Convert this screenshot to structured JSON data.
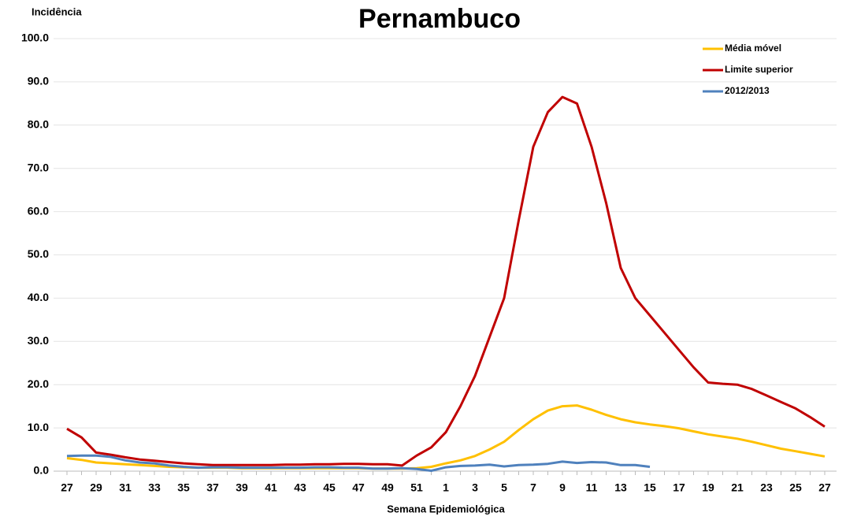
{
  "chart_data": {
    "type": "line",
    "title": "Pernambuco",
    "x_label": "Semana Epidemiológica",
    "y_label": "Incidência",
    "categories": [
      "27",
      null,
      "29",
      null,
      "31",
      null,
      "33",
      null,
      "35",
      null,
      "37",
      null,
      "39",
      null,
      "41",
      null,
      "43",
      null,
      "45",
      null,
      "47",
      null,
      "49",
      null,
      "51",
      null,
      "1",
      null,
      "3",
      null,
      "5",
      null,
      "7",
      null,
      "9",
      null,
      "11",
      null,
      "13",
      null,
      "15",
      null,
      "17",
      null,
      "19",
      null,
      "21",
      null,
      "23",
      null,
      "25",
      null,
      "27"
    ],
    "series": [
      {
        "name": "Média móvel",
        "color": "#ffc000",
        "values": [
          3.0,
          2.6,
          2.0,
          1.8,
          1.6,
          1.4,
          1.2,
          1.0,
          0.9,
          0.8,
          0.8,
          0.8,
          0.7,
          0.7,
          0.7,
          0.7,
          0.7,
          0.7,
          0.7,
          0.7,
          0.7,
          0.6,
          0.6,
          0.6,
          0.7,
          1.0,
          1.8,
          2.5,
          3.5,
          5.0,
          6.8,
          9.5,
          12.0,
          14.0,
          15.0,
          15.2,
          14.2,
          13.0,
          12.0,
          11.3,
          10.8,
          10.4,
          9.9,
          9.2,
          8.5,
          8.0,
          7.5,
          6.8,
          6.0,
          5.2,
          4.6,
          4.0,
          3.4
        ]
      },
      {
        "name": "Limite superior",
        "color": "#c00000",
        "values": [
          9.8,
          7.8,
          4.3,
          3.8,
          3.2,
          2.7,
          2.4,
          2.1,
          1.8,
          1.6,
          1.4,
          1.4,
          1.4,
          1.4,
          1.4,
          1.5,
          1.5,
          1.6,
          1.6,
          1.7,
          1.7,
          1.6,
          1.6,
          1.3,
          3.6,
          5.5,
          9.0,
          15.0,
          22.0,
          31.0,
          40.0,
          58.0,
          75.0,
          83.0,
          86.5,
          85.0,
          75.0,
          62.0,
          47.0,
          40.0,
          36.0,
          32.0,
          28.0,
          24.0,
          20.5,
          20.2,
          20.0,
          19.0,
          17.5,
          16.0,
          14.5,
          12.5,
          10.3
        ]
      },
      {
        "name": "2012/2013",
        "color": "#4f81bd",
        "values": [
          3.5,
          3.6,
          3.6,
          3.3,
          2.5,
          2.0,
          1.8,
          1.3,
          1.0,
          0.8,
          0.9,
          0.9,
          0.8,
          0.8,
          0.8,
          0.8,
          0.8,
          0.9,
          0.9,
          0.8,
          0.8,
          0.6,
          0.6,
          0.7,
          0.5,
          0.1,
          0.9,
          1.2,
          1.3,
          1.5,
          1.1,
          1.4,
          1.5,
          1.7,
          2.2,
          1.9,
          2.1,
          2.0,
          1.4,
          1.4,
          1.0,
          null,
          null,
          null,
          null,
          null,
          null,
          null,
          null,
          null,
          null,
          null,
          null
        ]
      }
    ],
    "ylim": [
      0,
      100
    ],
    "yticks": [
      {
        "value": 0,
        "label": "0.0"
      },
      {
        "value": 10,
        "label": "10.0"
      },
      {
        "value": 20,
        "label": "20.0"
      },
      {
        "value": 30,
        "label": "30.0"
      },
      {
        "value": 40,
        "label": "40.0"
      },
      {
        "value": 50,
        "label": "50.0"
      },
      {
        "value": 60,
        "label": "60.0"
      },
      {
        "value": 70,
        "label": "70.0"
      },
      {
        "value": 80,
        "label": "80.0"
      },
      {
        "value": 90,
        "label": "90.0"
      },
      {
        "value": 100,
        "label": "100.0"
      }
    ],
    "grid": true,
    "legend": "top-right"
  }
}
